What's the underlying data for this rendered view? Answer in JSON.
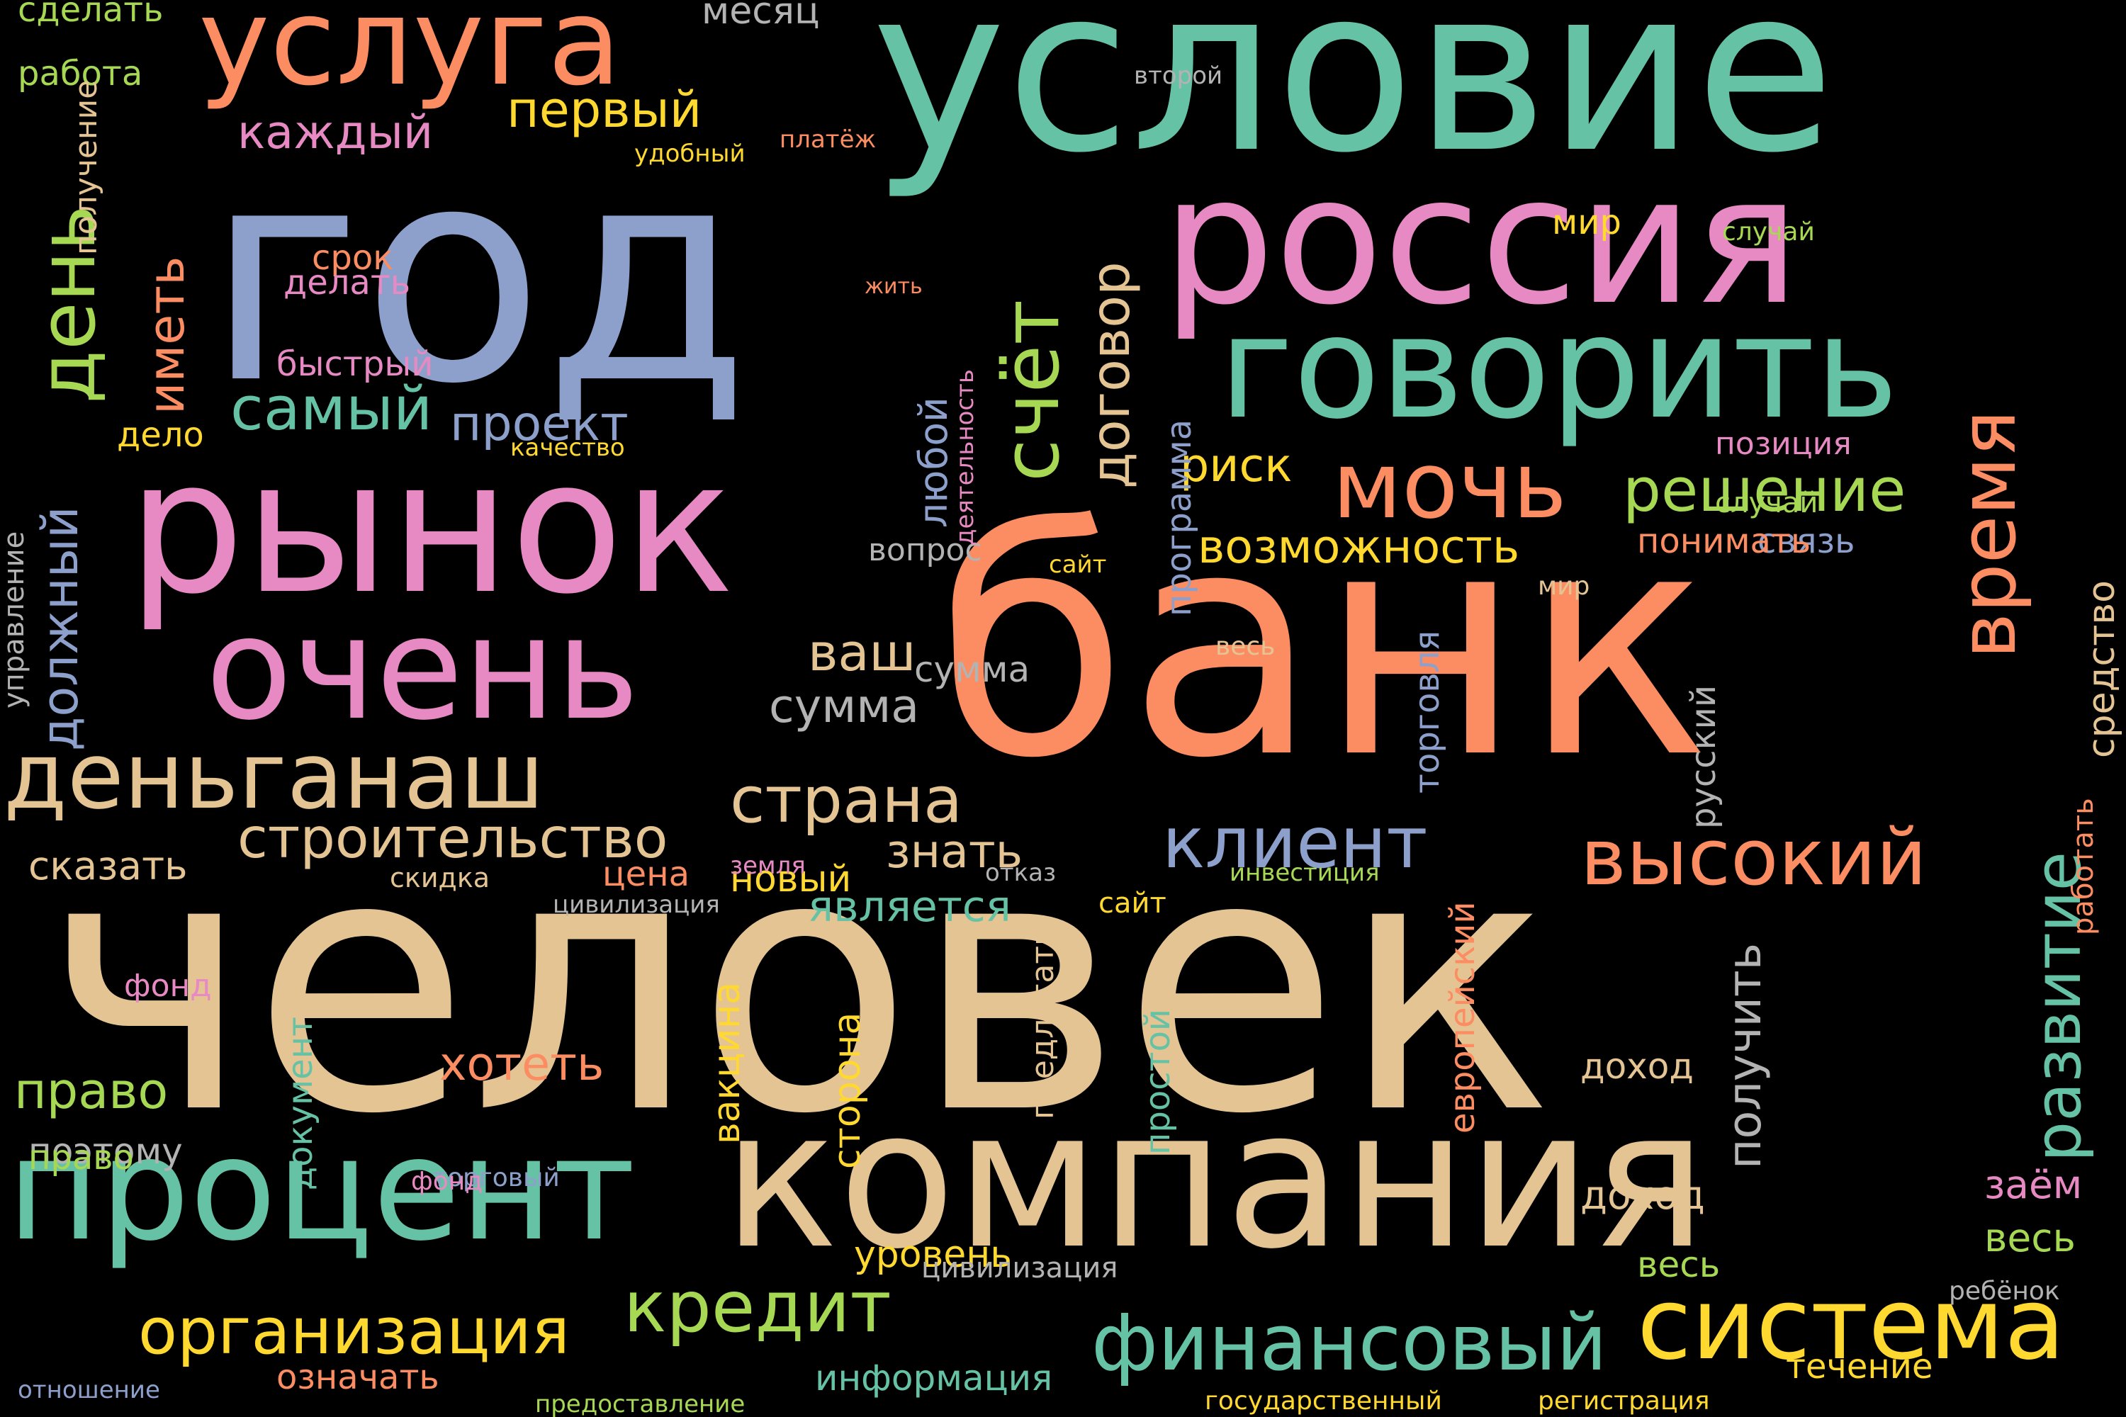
{
  "words": [
    {
      "text": "человек",
      "color": "#e5c494"
    },
    {
      "text": "банк",
      "color": "#fc8d62"
    },
    {
      "text": "год",
      "color": "#8da0cb"
    },
    {
      "text": "условие",
      "color": "#66c2a5"
    },
    {
      "text": "компания",
      "color": "#e5c494"
    },
    {
      "text": "россия",
      "color": "#e78ac3"
    },
    {
      "text": "рынок",
      "color": "#e78ac3"
    },
    {
      "text": "процент",
      "color": "#66c2a5"
    },
    {
      "text": "говорить",
      "color": "#66c2a5"
    },
    {
      "text": "очень",
      "color": "#e78ac3"
    },
    {
      "text": "услуга",
      "color": "#fc8d62"
    },
    {
      "text": "деньганаш",
      "color": "#e5c494"
    },
    {
      "text": "система",
      "color": "#ffd92f"
    },
    {
      "text": "мочь",
      "color": "#fc8d62"
    },
    {
      "text": "финансовый",
      "color": "#66c2a5"
    },
    {
      "text": "организация",
      "color": "#ffd92f"
    },
    {
      "text": "кредит",
      "color": "#a6d854"
    },
    {
      "text": "высокий",
      "color": "#fc8d62"
    },
    {
      "text": "клиент",
      "color": "#8da0cb"
    },
    {
      "text": "страна",
      "color": "#e5c494"
    },
    {
      "text": "строительство",
      "color": "#e5c494"
    },
    {
      "text": "решение",
      "color": "#a6d854"
    },
    {
      "text": "самый",
      "color": "#66c2a5"
    },
    {
      "text": "возможность",
      "color": "#ffd92f"
    },
    {
      "text": "ваш",
      "color": "#e5c494"
    },
    {
      "text": "сумма",
      "color": "#b3b3b3"
    },
    {
      "text": "проект",
      "color": "#8da0cb"
    },
    {
      "text": "риск",
      "color": "#ffd92f"
    },
    {
      "text": "первый",
      "color": "#ffd92f"
    },
    {
      "text": "каждый",
      "color": "#e78ac3"
    },
    {
      "text": "знать",
      "color": "#e5c494"
    },
    {
      "text": "право",
      "color": "#a6d854"
    },
    {
      "text": "хотеть",
      "color": "#fc8d62"
    },
    {
      "text": "является",
      "color": "#66c2a5"
    },
    {
      "text": "сказать",
      "color": "#e5c494"
    },
    {
      "text": "новый",
      "color": "#ffd92f"
    },
    {
      "text": "поэтому",
      "color": "#b3b3b3"
    },
    {
      "text": "доход",
      "color": "#e5c494"
    },
    {
      "text": "весь",
      "color": "#a6d854"
    },
    {
      "text": "информация",
      "color": "#66c2a5"
    },
    {
      "text": "означать",
      "color": "#fc8d62"
    },
    {
      "text": "сумма",
      "color": "#b3b3b3"
    },
    {
      "text": "позиция",
      "color": "#e78ac3"
    },
    {
      "text": "связь",
      "color": "#8da0cb"
    },
    {
      "text": "понимать",
      "color": "#fc8d62"
    },
    {
      "text": "доход",
      "color": "#e5c494"
    },
    {
      "text": "течение",
      "color": "#ffd92f"
    },
    {
      "text": "весь",
      "color": "#a6d854"
    },
    {
      "text": "заём",
      "color": "#e78ac3"
    },
    {
      "text": "цена",
      "color": "#fc8d62"
    },
    {
      "text": "срок",
      "color": "#fc8d62"
    },
    {
      "text": "быстрый",
      "color": "#e78ac3"
    },
    {
      "text": "делать",
      "color": "#e78ac3"
    },
    {
      "text": "работа",
      "color": "#a6d854"
    },
    {
      "text": "сделать",
      "color": "#a6d854"
    },
    {
      "text": "месяц",
      "color": "#b3b3b3"
    },
    {
      "text": "дело",
      "color": "#ffd92f"
    },
    {
      "text": "фонд",
      "color": "#e78ac3"
    },
    {
      "text": "право",
      "color": "#a6d854"
    },
    {
      "text": "уровень",
      "color": "#ffd92f"
    },
    {
      "text": "сайт",
      "color": "#ffd92f"
    },
    {
      "text": "цивилизация",
      "color": "#b3b3b3"
    },
    {
      "text": "мир",
      "color": "#ffd92f"
    },
    {
      "text": "случай",
      "color": "#a6d854"
    },
    {
      "text": "ребёнок",
      "color": "#b3b3b3"
    },
    {
      "text": "государственный",
      "color": "#ffd92f"
    },
    {
      "text": "регистрация",
      "color": "#ffd92f"
    },
    {
      "text": "предоставление",
      "color": "#a6d854"
    },
    {
      "text": "отношение",
      "color": "#8da0cb"
    },
    {
      "text": "торговый",
      "color": "#8da0cb"
    },
    {
      "text": "вопрос",
      "color": "#b3b3b3"
    },
    {
      "text": "скидка",
      "color": "#e5c494"
    },
    {
      "text": "земля",
      "color": "#e78ac3"
    },
    {
      "text": "цивилизация",
      "color": "#b3b3b3"
    },
    {
      "text": "отказ",
      "color": "#b3b3b3"
    },
    {
      "text": "инвестиция",
      "color": "#a6d854"
    },
    {
      "text": "второй",
      "color": "#b3b3b3"
    },
    {
      "text": "случай",
      "color": "#a6d854"
    },
    {
      "text": "весь",
      "color": "#e5c494"
    },
    {
      "text": "мир",
      "color": "#e5c494"
    },
    {
      "text": "сайт",
      "color": "#ffd92f"
    },
    {
      "text": "качество",
      "color": "#ffd92f"
    },
    {
      "text": "платёж",
      "color": "#fc8d62"
    },
    {
      "text": "удобный",
      "color": "#ffd92f"
    },
    {
      "text": "жить",
      "color": "#fc8d62"
    },
    {
      "text": "фонд",
      "color": "#e78ac3"
    },
    {
      "text": "день",
      "color": "#a6d854"
    },
    {
      "text": "счёт",
      "color": "#a6d854"
    },
    {
      "text": "время",
      "color": "#fc8d62"
    },
    {
      "text": "развитие",
      "color": "#66c2a5"
    },
    {
      "text": "договор",
      "color": "#e5c494"
    },
    {
      "text": "должный",
      "color": "#8da0cb"
    },
    {
      "text": "иметь",
      "color": "#fc8d62"
    },
    {
      "text": "получить",
      "color": "#b3b3b3"
    },
    {
      "text": "средство",
      "color": "#e5c494"
    },
    {
      "text": "работать",
      "color": "#fc8d62"
    },
    {
      "text": "любой",
      "color": "#8da0cb"
    },
    {
      "text": "вакцина",
      "color": "#ffd92f"
    },
    {
      "text": "сторона",
      "color": "#ffd92f"
    },
    {
      "text": "простой",
      "color": "#66c2a5"
    },
    {
      "text": "программа",
      "color": "#8da0cb"
    },
    {
      "text": "торговля",
      "color": "#8da0cb"
    },
    {
      "text": "русский",
      "color": "#b3b3b3"
    },
    {
      "text": "европейский",
      "color": "#fc8d62"
    },
    {
      "text": "документ",
      "color": "#66c2a5"
    },
    {
      "text": "предлагать",
      "color": "#e5c494"
    },
    {
      "text": "получение",
      "color": "#e5c494"
    },
    {
      "text": "управление",
      "color": "#b3b3b3"
    },
    {
      "text": "деятельность",
      "color": "#e78ac3"
    }
  ]
}
